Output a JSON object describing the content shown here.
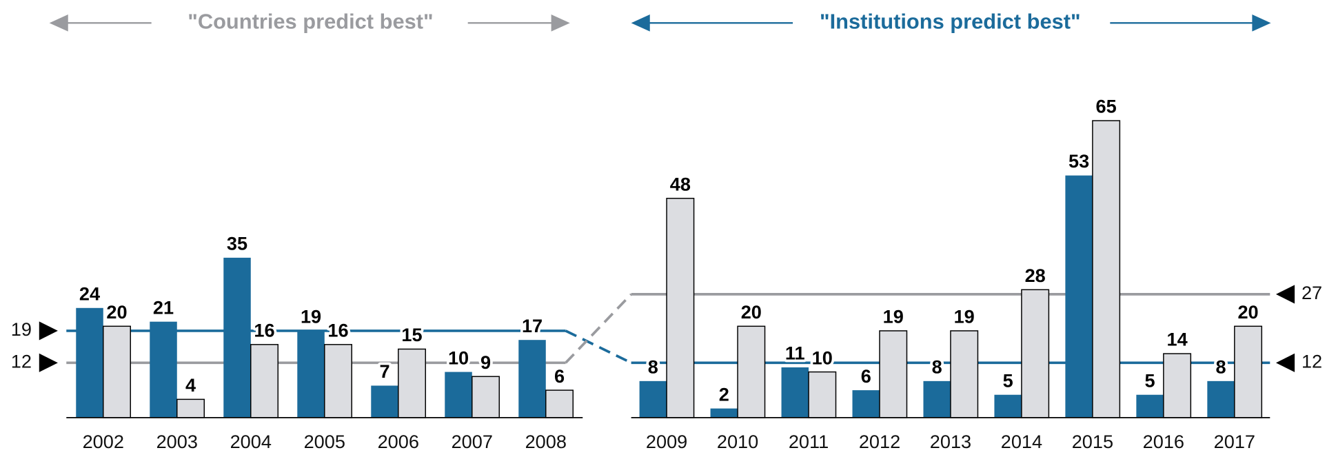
{
  "chart_data": [
    {
      "type": "bar",
      "title": "\"Countries predict best\"",
      "title_color": "#9a9b9f",
      "categories": [
        "2002",
        "2003",
        "2004",
        "2005",
        "2006",
        "2007",
        "2008"
      ],
      "series": [
        {
          "color": "#1b6b9b",
          "values": [
            24,
            21,
            35,
            19,
            7,
            10,
            17
          ],
          "average": 19
        },
        {
          "color": "#dcdde1",
          "values": [
            20,
            4,
            16,
            16,
            15,
            9,
            6
          ],
          "average": 12
        }
      ],
      "ylim": [
        0,
        70
      ],
      "average_side": "left"
    },
    {
      "type": "bar",
      "title": "\"Institutions predict best\"",
      "title_color": "#1b6b9b",
      "categories": [
        "2009",
        "2010",
        "2011",
        "2012",
        "2013",
        "2014",
        "2015",
        "2016",
        "2017"
      ],
      "series": [
        {
          "color": "#1b6b9b",
          "values": [
            8,
            2,
            11,
            6,
            8,
            5,
            53,
            5,
            8
          ],
          "average": 12
        },
        {
          "color": "#dcdde1",
          "values": [
            48,
            20,
            10,
            19,
            19,
            28,
            65,
            14,
            20
          ],
          "average": 27
        }
      ],
      "ylim": [
        0,
        70
      ],
      "average_side": "right"
    }
  ]
}
